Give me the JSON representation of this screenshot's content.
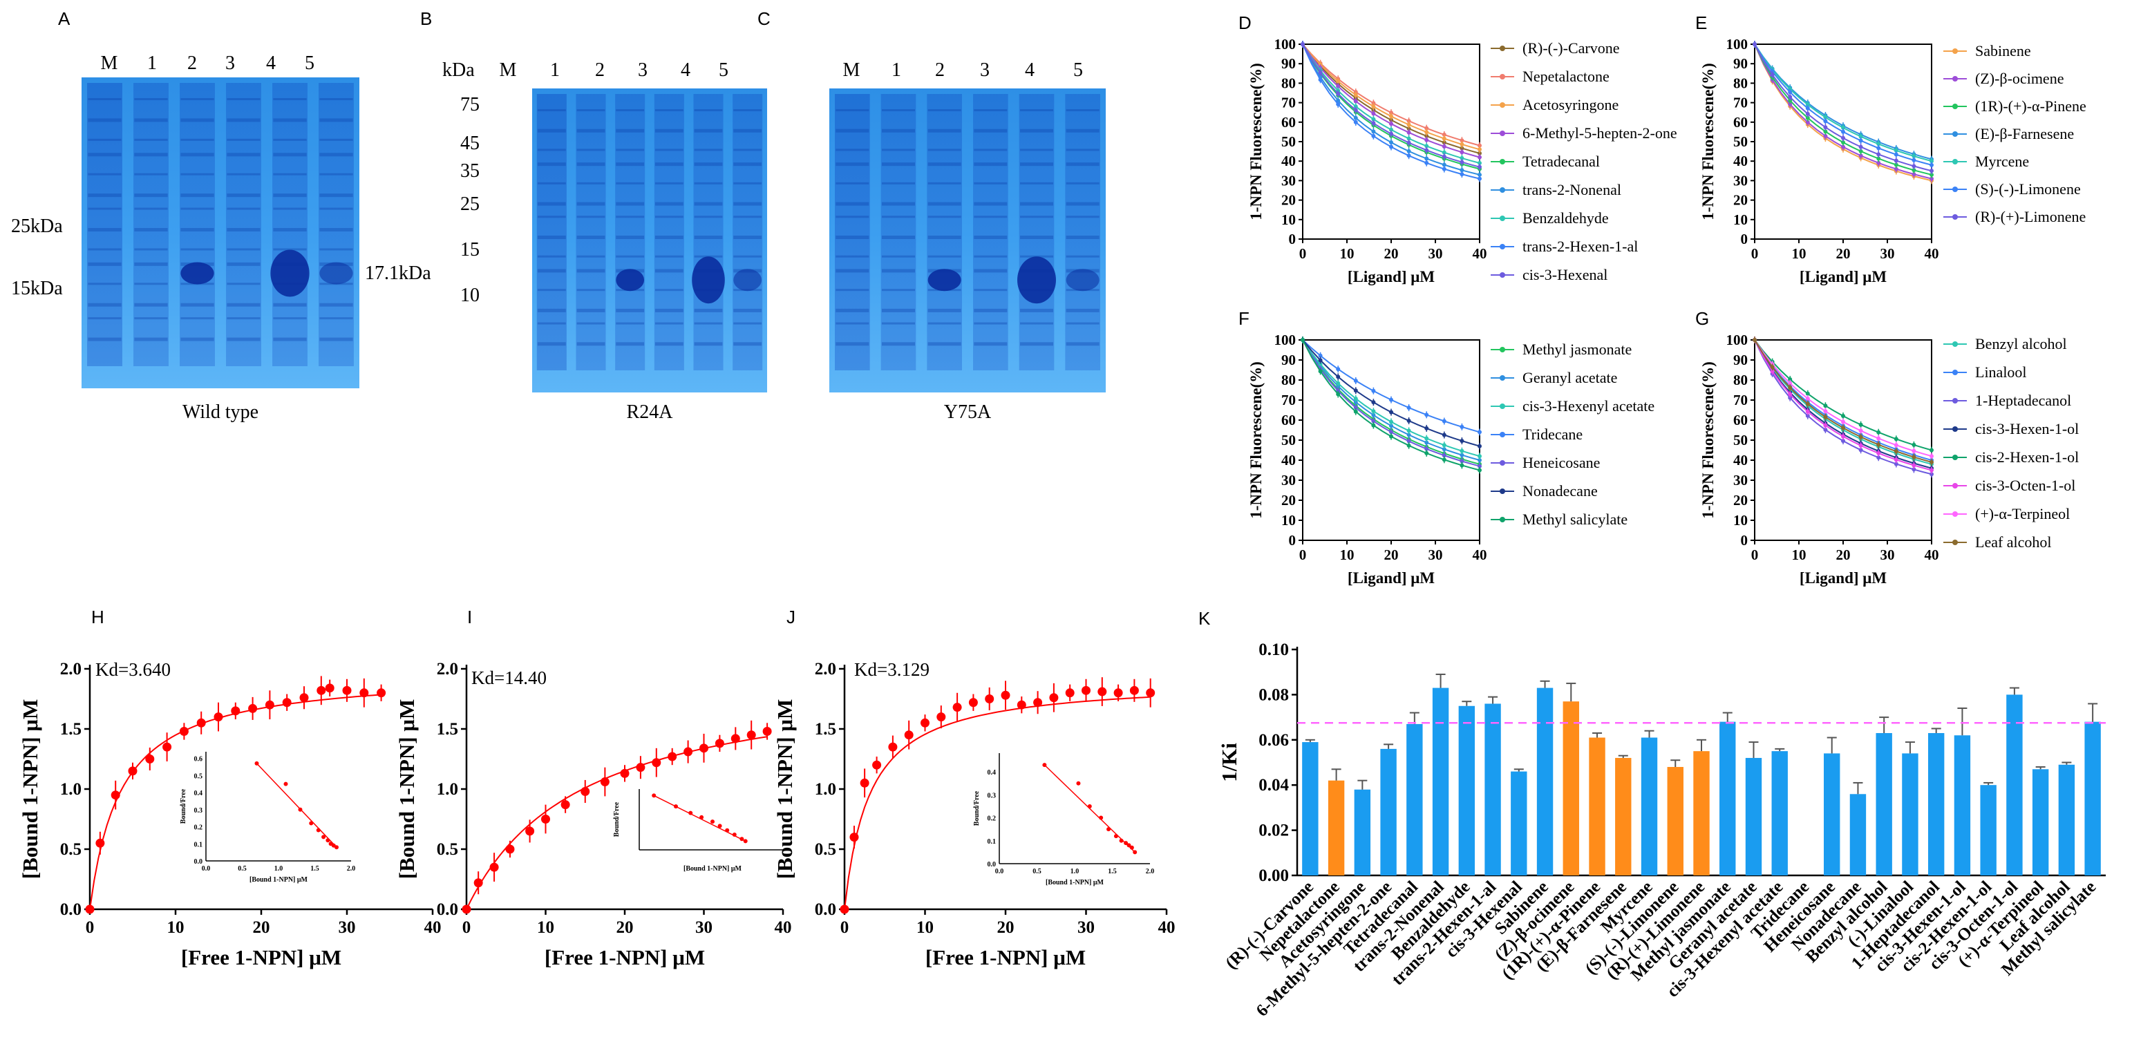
{
  "gels": [
    {
      "panel": "A",
      "lanes": [
        "M",
        "1",
        "2",
        "3",
        "4",
        "5"
      ],
      "markers": [
        "25kDa",
        "15kDa"
      ],
      "band": "17.1kDa",
      "caption": "Wild type"
    },
    {
      "panel": "B",
      "unit": "kDa",
      "lanes": [
        "M",
        "1",
        "2",
        "3",
        "4",
        "5"
      ],
      "markers": [
        "75",
        "45",
        "35",
        "25",
        "15",
        "10"
      ],
      "caption": "R24A"
    },
    {
      "panel": "C",
      "lanes": [
        "M",
        "1",
        "2",
        "3",
        "4",
        "5"
      ],
      "caption": "Y75A"
    }
  ],
  "colors": {
    "series": [
      "#8b6b2e",
      "#f07c6e",
      "#f4a24a",
      "#9d4dd8",
      "#22c55e",
      "#2f8fe0",
      "#2ec7b3",
      "#3b82f6",
      "#6d5bdf",
      "#1e3a8a",
      "#0fa36b",
      "#e846e8",
      "#ff66ff"
    ],
    "red": "#ff0000",
    "blue": "#1a9cf0",
    "orange": "#ff8c1a",
    "threshold": "#ff66ff"
  },
  "chart_data": [
    {
      "panel": "D",
      "type": "line",
      "xlabel": "[Ligand] μM",
      "ylabel": "1-NPN Fluorescene(%)",
      "xlim": [
        0,
        40
      ],
      "ylim": [
        0,
        100
      ],
      "xticks": [
        0,
        10,
        20,
        30,
        40
      ],
      "yticks": [
        0,
        10,
        20,
        30,
        40,
        50,
        60,
        70,
        80,
        90,
        100
      ],
      "x": [
        0,
        2,
        4,
        6,
        8,
        10,
        12,
        14,
        16,
        18,
        20,
        22,
        24,
        26,
        28,
        30,
        32,
        34,
        36,
        38,
        40
      ],
      "series": [
        {
          "name": "(R)-(-)-Carvone",
          "end": 44
        },
        {
          "name": "Nepetalactone",
          "end": 48
        },
        {
          "name": "Acetosyringone",
          "end": 46
        },
        {
          "name": "6-Methyl-5-hepten-2-one",
          "end": 42
        },
        {
          "name": "Tetradecanal",
          "end": 36
        },
        {
          "name": "trans-2-Nonenal",
          "end": 33
        },
        {
          "name": "Benzaldehyde",
          "end": 39
        },
        {
          "name": "trans-2-Hexen-1-al",
          "end": 31
        },
        {
          "name": "cis-3-Hexenal",
          "end": 37
        }
      ]
    },
    {
      "panel": "E",
      "type": "line",
      "xlabel": "[Ligand] μM",
      "ylabel": "1-NPN Fluorescene(%)",
      "xlim": [
        0,
        40
      ],
      "ylim": [
        0,
        100
      ],
      "xticks": [
        0,
        10,
        20,
        30,
        40
      ],
      "yticks": [
        0,
        10,
        20,
        30,
        40,
        50,
        60,
        70,
        80,
        90,
        100
      ],
      "x": [
        0,
        2,
        4,
        6,
        8,
        10,
        12,
        14,
        16,
        18,
        20,
        22,
        24,
        26,
        28,
        30,
        32,
        34,
        36,
        38,
        40
      ],
      "series": [
        {
          "name": "Sabinene",
          "end": 30
        },
        {
          "name": "(Z)-β-ocimene",
          "end": 31
        },
        {
          "name": "(1R)-(+)-α-Pinene",
          "end": 33
        },
        {
          "name": "(E)-β-Farnesene",
          "end": 41
        },
        {
          "name": "Myrcene",
          "end": 40
        },
        {
          "name": "(S)-(-)-Limonene",
          "end": 38
        },
        {
          "name": "(R)-(+)-Limonene",
          "end": 35
        }
      ]
    },
    {
      "panel": "F",
      "type": "line",
      "xlabel": "[Ligand] μM",
      "ylabel": "1-NPN Fluorescene(%)",
      "xlim": [
        0,
        40
      ],
      "ylim": [
        0,
        100
      ],
      "xticks": [
        0,
        10,
        20,
        30,
        40
      ],
      "yticks": [
        0,
        10,
        20,
        30,
        40,
        50,
        60,
        70,
        80,
        90,
        100
      ],
      "x": [
        0,
        2,
        4,
        6,
        8,
        10,
        12,
        14,
        16,
        18,
        20,
        22,
        24,
        26,
        28,
        30,
        32,
        34,
        36,
        38,
        40
      ],
      "series": [
        {
          "name": "Methyl jasmonate",
          "end": 38
        },
        {
          "name": "Geranyl acetate",
          "end": 40
        },
        {
          "name": "cis-3-Hexenyl acetate",
          "end": 42
        },
        {
          "name": "Tridecane",
          "end": 54
        },
        {
          "name": "Heneicosane",
          "end": 37
        },
        {
          "name": "Nonadecane",
          "end": 47
        },
        {
          "name": "Methyl salicylate",
          "end": 35
        }
      ]
    },
    {
      "panel": "G",
      "type": "line",
      "xlabel": "[Ligand] μM",
      "ylabel": "1-NPN Fluorescene(%)",
      "xlim": [
        0,
        40
      ],
      "ylim": [
        0,
        100
      ],
      "xticks": [
        0,
        10,
        20,
        30,
        40
      ],
      "yticks": [
        0,
        10,
        20,
        30,
        40,
        50,
        60,
        70,
        80,
        90,
        100
      ],
      "x": [
        0,
        2,
        4,
        6,
        8,
        10,
        12,
        14,
        16,
        18,
        20,
        22,
        24,
        26,
        28,
        30,
        32,
        34,
        36,
        38,
        40
      ],
      "series": [
        {
          "name": "Benzyl alcohol",
          "end": 38
        },
        {
          "name": "Linalool",
          "end": 40
        },
        {
          "name": "1-Heptadecanol",
          "end": 33
        },
        {
          "name": "cis-3-Hexen-1-ol",
          "end": 36
        },
        {
          "name": "cis-2-Hexen-1-ol",
          "end": 45
        },
        {
          "name": "cis-3-Octen-1-ol",
          "end": 35
        },
        {
          "name": "(+)-α-Terpineol",
          "end": 42
        },
        {
          "name": "Leaf alcohol",
          "end": 39
        }
      ]
    },
    {
      "panel": "H",
      "type": "scatter",
      "kd": "Kd=3.640",
      "xlabel": "[Free 1-NPN] μM",
      "ylabel": "[Bound 1-NPN] μM",
      "xlim": [
        0,
        40
      ],
      "ylim": [
        0,
        2.0
      ],
      "xticks": [
        0,
        10,
        20,
        30,
        40
      ],
      "yticks": [
        "0.0",
        "0.5",
        "1.0",
        "1.5",
        "2.0"
      ],
      "x": [
        0,
        1.2,
        3,
        5,
        7,
        9,
        11,
        13,
        15,
        17,
        19,
        21,
        23,
        25,
        27,
        28,
        30,
        32,
        34
      ],
      "y": [
        0,
        0.55,
        0.95,
        1.15,
        1.25,
        1.35,
        1.48,
        1.55,
        1.6,
        1.65,
        1.67,
        1.7,
        1.72,
        1.76,
        1.82,
        1.84,
        1.82,
        1.8,
        1.8
      ],
      "inset": {
        "xlabel": "[Bound 1-NPN] μM",
        "ylabel": "Bound/Free",
        "xticks": [
          "0.0",
          "0.5",
          "1.0",
          "1.5",
          "2.0"
        ],
        "yticks": [
          "0.0",
          "0.1",
          "0.2",
          "0.3",
          "0.4",
          "0.5",
          "0.6"
        ],
        "x": [
          0.7,
          1.1,
          1.3,
          1.45,
          1.55,
          1.62,
          1.68,
          1.72,
          1.76,
          1.8
        ],
        "y": [
          0.57,
          0.45,
          0.3,
          0.22,
          0.18,
          0.14,
          0.12,
          0.1,
          0.09,
          0.08
        ]
      }
    },
    {
      "panel": "I",
      "type": "scatter",
      "kd": "Kd=14.40",
      "xlabel": "[Free 1-NPN] μM",
      "ylabel": "[Bound 1-NPN] μM",
      "xlim": [
        0,
        40
      ],
      "ylim": [
        0,
        2.0
      ],
      "xticks": [
        0,
        10,
        20,
        30,
        40
      ],
      "yticks": [
        "0.0",
        "0.5",
        "1.0",
        "1.5",
        "2.0"
      ],
      "x": [
        0,
        1.5,
        3.5,
        5.5,
        8,
        10,
        12.5,
        15,
        17.5,
        20,
        22,
        24,
        26,
        28,
        30,
        32,
        34,
        36,
        38
      ],
      "y": [
        0,
        0.22,
        0.35,
        0.5,
        0.65,
        0.75,
        0.87,
        0.98,
        1.06,
        1.13,
        1.18,
        1.22,
        1.27,
        1.31,
        1.34,
        1.38,
        1.42,
        1.45,
        1.48
      ],
      "inset": {
        "xlabel": "[Bound 1-NPN] μM",
        "ylabel": "Bound/Free",
        "x": [
          0.2,
          0.5,
          0.7,
          0.85,
          1.0,
          1.1,
          1.2,
          1.3,
          1.4,
          1.45
        ],
        "y": [
          0.25,
          0.2,
          0.17,
          0.15,
          0.13,
          0.11,
          0.09,
          0.07,
          0.05,
          0.04
        ]
      }
    },
    {
      "panel": "J",
      "type": "scatter",
      "kd": "Kd=3.129",
      "xlabel": "[Free 1-NPN] μM",
      "ylabel": "[Bound 1-NPN] μM",
      "xlim": [
        0,
        40
      ],
      "ylim": [
        0,
        2.0
      ],
      "xticks": [
        0,
        10,
        20,
        30,
        40
      ],
      "yticks": [
        "0.0",
        "0.5",
        "1.0",
        "1.5",
        "2.0"
      ],
      "x": [
        0,
        1.2,
        2.5,
        4,
        6,
        8,
        10,
        12,
        14,
        16,
        18,
        20,
        22,
        24,
        26,
        28,
        30,
        32,
        34,
        36,
        38
      ],
      "y": [
        0,
        0.6,
        1.05,
        1.2,
        1.35,
        1.45,
        1.55,
        1.6,
        1.68,
        1.72,
        1.75,
        1.78,
        1.7,
        1.72,
        1.76,
        1.8,
        1.82,
        1.81,
        1.8,
        1.82,
        1.8
      ],
      "inset": {
        "xlabel": "[Bound 1-NPN] μM",
        "ylabel": "Bound/Free",
        "xticks": [
          "0.0",
          "0.5",
          "1.0",
          "1.5",
          "2.0"
        ],
        "yticks": [
          "0.0",
          "0.1",
          "0.2",
          "0.3",
          "0.4",
          "0.5"
        ],
        "x": [
          0.6,
          1.05,
          1.2,
          1.35,
          1.45,
          1.55,
          1.62,
          1.68,
          1.72,
          1.76,
          1.8
        ],
        "y": [
          0.43,
          0.35,
          0.25,
          0.2,
          0.15,
          0.12,
          0.1,
          0.09,
          0.08,
          0.07,
          0.05
        ]
      }
    },
    {
      "panel": "K",
      "type": "bar",
      "ylabel": "1/Ki",
      "ylim": [
        0,
        0.1
      ],
      "yticks": [
        "0.00",
        "0.02",
        "0.04",
        "0.06",
        "0.08",
        "0.10"
      ],
      "threshold": 0.0675,
      "categories": [
        "(R)-(-)-Carvone",
        "Nepetalactone",
        "Acetosyringone",
        "6-Methyl-5-hepten-2-one",
        "Tetradecanal",
        "trans-2-Nonenal",
        "Benzaldehyde",
        "trans-2-Hexen-1-al",
        "cis-3-Hexenal",
        "Sabinene",
        "(Z)-β-ocimene",
        "(1R)-(+)-α-Pinene",
        "(E)-β-Farnesene",
        "Myrcene",
        "(S)-(-)-Limonene",
        "(R)-(+)-Limonene",
        "Methyl jasmonate",
        "Geranyl acetate",
        "cis-3-Hexenyl acetate",
        "Tridecane",
        "Heneicosane",
        "Nonadecane",
        "Benzyl alcohol",
        "(-)-Linalool",
        "1-Heptadecanol",
        "cis-3-Hexen-1-ol",
        "cis-2-Hexen-1-ol",
        "cis-3-Octen-1-ol",
        "(+)-α-Terpineol",
        "Leaf alcohol",
        "Methyl salicylate"
      ],
      "values": [
        0.059,
        0.042,
        0.038,
        0.056,
        0.067,
        0.083,
        0.075,
        0.076,
        0.046,
        0.083,
        0.077,
        0.061,
        0.052,
        0.061,
        0.048,
        0.055,
        0.068,
        0.052,
        0.055,
        0,
        0.054,
        0.036,
        0.063,
        0.054,
        0.063,
        0.062,
        0.04,
        0.08,
        0.047,
        0.049,
        0.068
      ],
      "errors": [
        0.001,
        0.005,
        0.004,
        0.002,
        0.005,
        0.006,
        0.002,
        0.003,
        0.001,
        0.003,
        0.008,
        0.002,
        0.001,
        0.003,
        0.003,
        0.005,
        0.004,
        0.007,
        0.001,
        0,
        0.007,
        0.005,
        0.007,
        0.005,
        0.002,
        0.012,
        0.001,
        0.003,
        0.001,
        0.001,
        0.008
      ],
      "highlight": [
        1,
        10,
        11,
        12,
        14,
        15
      ]
    }
  ]
}
